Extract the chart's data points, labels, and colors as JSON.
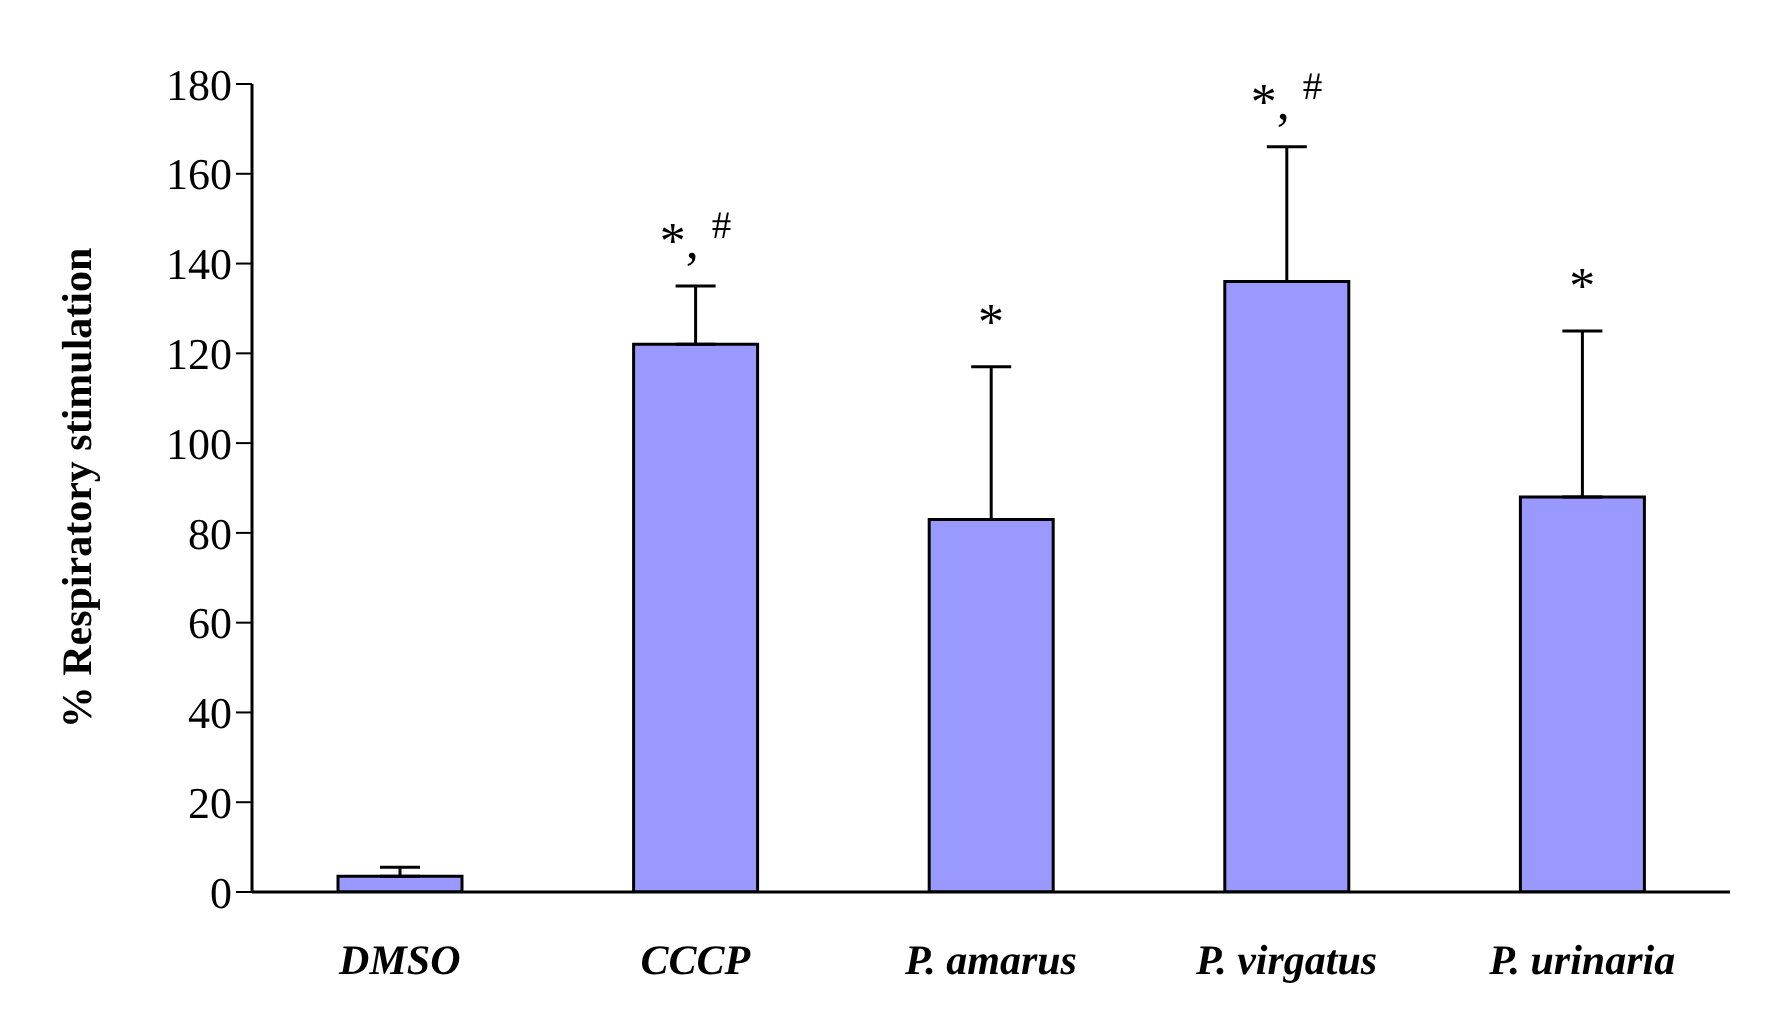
{
  "chart_data": {
    "type": "bar",
    "ylabel": "% Respiratory stimulation",
    "categories": [
      "DMSO",
      "CCCP",
      "P. amarus",
      "P. virgatus",
      "P. urinaria"
    ],
    "values": [
      3.5,
      122,
      83,
      136,
      88
    ],
    "errors": [
      [
        3.5,
        5.5
      ],
      [
        122,
        135
      ],
      [
        83,
        117
      ],
      [
        136,
        166
      ],
      [
        88,
        125
      ]
    ],
    "color": "#9999ff",
    "ylim": [
      0,
      180
    ],
    "yticks": [
      0,
      20,
      40,
      60,
      80,
      100,
      120,
      140,
      160,
      180
    ],
    "grid": false,
    "legend": false,
    "annotations": [
      {
        "text": "*, $^{#}$",
        "x": "CCCP",
        "y": 135
      },
      {
        "text": "*",
        "x": "P. amarus",
        "y": 117
      },
      {
        "text": "*, $^{#}$",
        "x": "P. virgatus",
        "y": 166
      },
      {
        "text": "*",
        "x": "P. urinaria",
        "y": 125
      }
    ]
  }
}
